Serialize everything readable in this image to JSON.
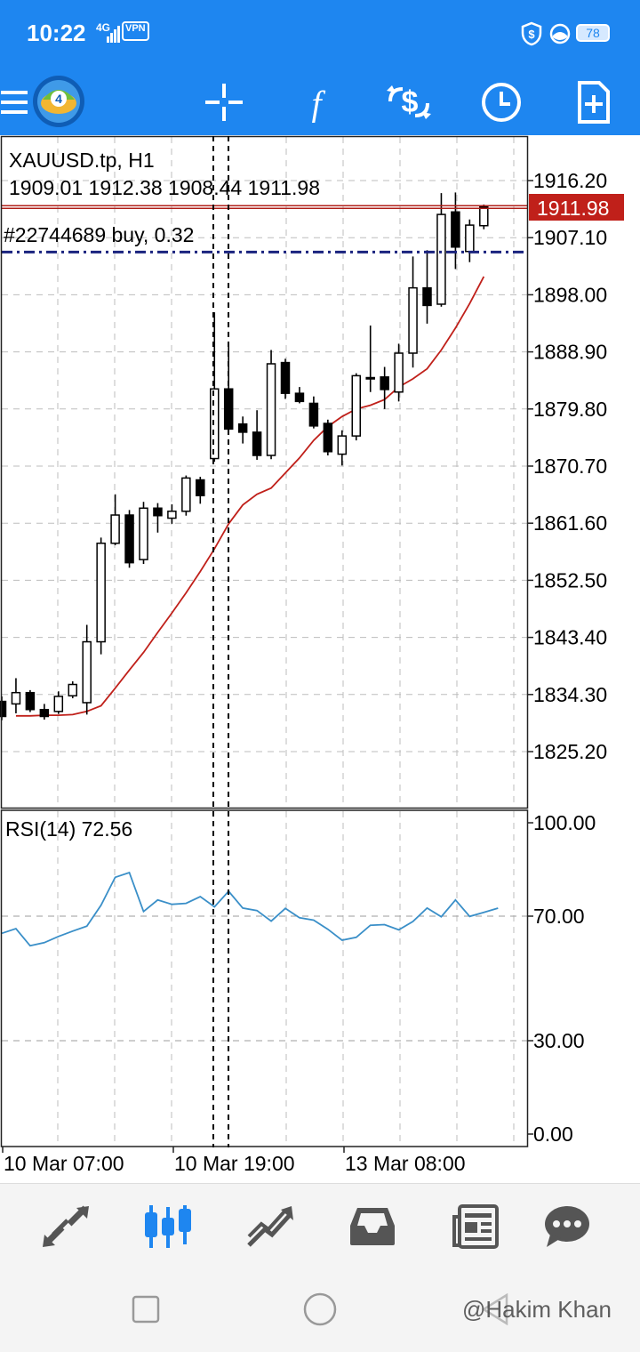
{
  "status_bar": {
    "time": "10:22",
    "network": "4G",
    "vpn": "VPN",
    "battery": "78"
  },
  "toolbar": {
    "icons": [
      "menu-icon",
      "metatrader-logo",
      "crosshair-icon",
      "indicators-icon",
      "trade-icon",
      "timeframe-icon",
      "new-order-icon"
    ]
  },
  "chart": {
    "symbol_line": "XAUUSD.tp, H1",
    "ohlc_line": "1909.01 1912.38 1908.44 1911.98",
    "order_line": "#22744689 buy, 0.32",
    "current_price": "1911.98",
    "bull_color": "#ffffff",
    "bear_color": "#000000",
    "ma_color": "#c0201a",
    "price_line_color": "#b01f1a",
    "order_line_color": "#1a237e",
    "rsi_color": "#3a8fc8"
  },
  "chart_data": {
    "type": "candlestick",
    "timeframe": "H1",
    "price_axis_ticks": [
      "1916.20",
      "1907.10",
      "1898.00",
      "1888.90",
      "1879.80",
      "1870.70",
      "1861.60",
      "1852.50",
      "1843.40",
      "1834.30",
      "1825.20"
    ],
    "price_range": [
      1816.0,
      1921.0
    ],
    "current_price": 1911.98,
    "order_price": 1904.8,
    "time_labels": [
      "10 Mar 07:00",
      "10 Mar 19:00",
      "13 Mar 08:00"
    ],
    "candles": [
      {
        "o": 1833.2,
        "h": 1834.0,
        "l": 1830.2,
        "c": 1830.8
      },
      {
        "o": 1832.8,
        "h": 1836.9,
        "l": 1831.3,
        "c": 1834.6
      },
      {
        "o": 1834.6,
        "h": 1835.0,
        "l": 1831.5,
        "c": 1831.9
      },
      {
        "o": 1831.9,
        "h": 1832.8,
        "l": 1830.3,
        "c": 1830.8
      },
      {
        "o": 1831.6,
        "h": 1834.8,
        "l": 1831.2,
        "c": 1834.0
      },
      {
        "o": 1834.1,
        "h": 1836.4,
        "l": 1833.7,
        "c": 1835.9
      },
      {
        "o": 1833.0,
        "h": 1845.4,
        "l": 1831.1,
        "c": 1842.7
      },
      {
        "o": 1842.7,
        "h": 1859.3,
        "l": 1840.7,
        "c": 1858.4
      },
      {
        "o": 1858.4,
        "h": 1866.2,
        "l": 1858.1,
        "c": 1862.9
      },
      {
        "o": 1862.9,
        "h": 1863.7,
        "l": 1854.5,
        "c": 1855.3
      },
      {
        "o": 1855.8,
        "h": 1865.0,
        "l": 1855.1,
        "c": 1864.0
      },
      {
        "o": 1864.0,
        "h": 1864.8,
        "l": 1860.1,
        "c": 1862.8
      },
      {
        "o": 1862.4,
        "h": 1864.6,
        "l": 1861.5,
        "c": 1863.5
      },
      {
        "o": 1863.5,
        "h": 1869.2,
        "l": 1862.8,
        "c": 1868.8
      },
      {
        "o": 1868.5,
        "h": 1869.0,
        "l": 1864.7,
        "c": 1866.0
      },
      {
        "o": 1871.9,
        "h": 1895.2,
        "l": 1871.4,
        "c": 1883.0
      },
      {
        "o": 1883.0,
        "h": 1890.0,
        "l": 1876.0,
        "c": 1876.6
      },
      {
        "o": 1877.4,
        "h": 1878.6,
        "l": 1874.3,
        "c": 1876.1
      },
      {
        "o": 1876.1,
        "h": 1879.6,
        "l": 1871.7,
        "c": 1872.4
      },
      {
        "o": 1872.4,
        "h": 1889.2,
        "l": 1871.8,
        "c": 1887.0
      },
      {
        "o": 1887.2,
        "h": 1887.8,
        "l": 1881.4,
        "c": 1882.3
      },
      {
        "o": 1882.3,
        "h": 1883.3,
        "l": 1880.7,
        "c": 1881.0
      },
      {
        "o": 1880.7,
        "h": 1881.8,
        "l": 1876.7,
        "c": 1877.1
      },
      {
        "o": 1877.5,
        "h": 1878.1,
        "l": 1872.4,
        "c": 1873.0
      },
      {
        "o": 1872.6,
        "h": 1876.4,
        "l": 1870.8,
        "c": 1875.5
      },
      {
        "o": 1875.5,
        "h": 1885.5,
        "l": 1874.8,
        "c": 1885.1
      },
      {
        "o": 1884.8,
        "h": 1893.1,
        "l": 1882.5,
        "c": 1884.6
      },
      {
        "o": 1884.9,
        "h": 1886.5,
        "l": 1879.8,
        "c": 1882.9
      },
      {
        "o": 1882.5,
        "h": 1890.2,
        "l": 1881.0,
        "c": 1888.7
      },
      {
        "o": 1888.7,
        "h": 1904.1,
        "l": 1886.4,
        "c": 1899.1
      },
      {
        "o": 1899.1,
        "h": 1905.1,
        "l": 1893.4,
        "c": 1896.3
      },
      {
        "o": 1896.5,
        "h": 1914.2,
        "l": 1896.1,
        "c": 1910.8
      },
      {
        "o": 1911.2,
        "h": 1914.3,
        "l": 1902.1,
        "c": 1905.6
      },
      {
        "o": 1904.9,
        "h": 1910.0,
        "l": 1903.2,
        "c": 1909.1
      },
      {
        "o": 1909.01,
        "h": 1912.38,
        "l": 1908.44,
        "c": 1911.98
      }
    ],
    "moving_average": [
      1830.9,
      1830.9,
      1831.0,
      1831.0,
      1831.1,
      1831.6,
      1832.5,
      1835.3,
      1838.2,
      1841.0,
      1844.2,
      1847.3,
      1850.5,
      1853.9,
      1857.5,
      1861.5,
      1864.5,
      1866.2,
      1867.2,
      1869.6,
      1872.0,
      1874.8,
      1877.0,
      1878.6,
      1879.8,
      1880.4,
      1881.3,
      1883.3,
      1884.6,
      1886.2,
      1889.2,
      1892.7,
      1896.6,
      1900.9
    ],
    "rsi": {
      "label": "RSI(14) 72.56",
      "period": 14,
      "current": 72.56,
      "axis_ticks": [
        "100.00",
        "70.00",
        "30.00",
        "0.00"
      ],
      "levels": [
        70,
        30
      ],
      "range": [
        0,
        100
      ],
      "values": [
        64.5,
        66.0,
        60.5,
        61.5,
        63.5,
        65.2,
        66.8,
        73.5,
        82.5,
        84.0,
        71.5,
        75.2,
        73.8,
        74.1,
        76.3,
        73.0,
        78.0,
        72.6,
        71.8,
        68.4,
        72.5,
        69.5,
        68.7,
        65.8,
        62.3,
        63.2,
        67.1,
        67.3,
        65.6,
        68.3,
        72.6,
        69.8,
        75.2,
        69.9,
        71.2,
        72.56
      ]
    },
    "grid": true
  },
  "bottom_nav": {
    "items": [
      {
        "name": "quotes",
        "icon": "quotes-arrows-icon",
        "active": false
      },
      {
        "name": "chart",
        "icon": "candlestick-chart-icon",
        "active": true
      },
      {
        "name": "trade",
        "icon": "trade-chart-icon",
        "active": false
      },
      {
        "name": "history",
        "icon": "history-inbox-icon",
        "active": false
      },
      {
        "name": "news",
        "icon": "news-icon",
        "active": false
      },
      {
        "name": "messages",
        "icon": "chat-icon",
        "active": false
      }
    ],
    "active_color": "#1e86f0",
    "inactive_color": "#555555"
  },
  "system_nav": {
    "icons": [
      "recents-square-icon",
      "home-circle-icon",
      "back-triangle-icon"
    ]
  },
  "watermark": "@Hakim Khan"
}
